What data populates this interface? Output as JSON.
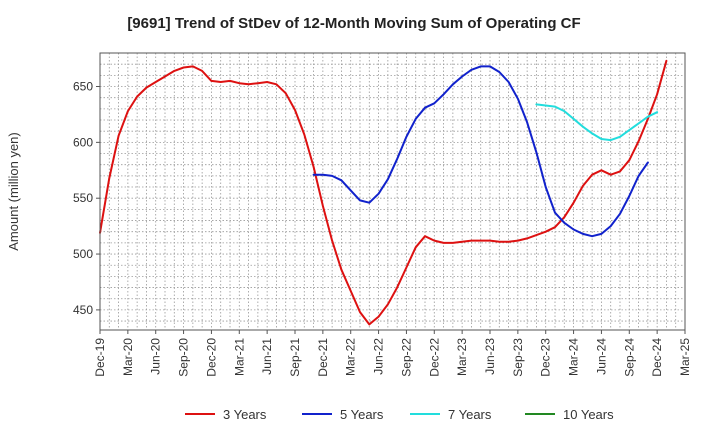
{
  "chart_data": {
    "type": "line",
    "title": "[9691]  Trend of StDev of 12-Month Moving Sum of Operating CF",
    "xlabel": "",
    "ylabel": "Amount (million yen)",
    "ylim": [
      432,
      680
    ],
    "yticks": [
      450,
      500,
      550,
      600,
      650
    ],
    "xticks": [
      "Dec-19",
      "Mar-20",
      "Jun-20",
      "Sep-20",
      "Dec-20",
      "Mar-21",
      "Jun-21",
      "Sep-21",
      "Dec-21",
      "Mar-22",
      "Jun-22",
      "Sep-22",
      "Dec-22",
      "Mar-23",
      "Jun-23",
      "Sep-23",
      "Dec-23",
      "Mar-24",
      "Jun-24",
      "Sep-24",
      "Dec-24",
      "Mar-25"
    ],
    "x_start": "Dec-19",
    "x_end": "Mar-25",
    "grid": true,
    "legend_position": "bottom",
    "series": [
      {
        "name": "3 Years",
        "color": "#dd1111",
        "start": "Dec-19",
        "values": [
          519,
          568,
          606,
          628,
          641,
          649,
          654,
          659,
          664,
          667,
          668,
          664,
          655,
          654,
          655,
          653,
          652,
          653,
          654,
          652,
          644,
          629,
          607,
          578,
          543,
          512,
          486,
          467,
          448,
          437,
          444,
          455,
          470,
          488,
          506,
          516,
          512,
          510,
          510,
          511,
          512,
          512,
          512,
          511,
          511,
          512,
          514,
          517,
          520,
          524,
          533,
          546,
          561,
          571,
          575,
          571,
          574,
          584,
          601,
          621,
          643,
          673
        ]
      },
      {
        "name": "5 Years",
        "color": "#1122cc",
        "start": "Nov-21",
        "values": [
          571,
          571,
          570,
          566,
          557,
          548,
          546,
          554,
          567,
          585,
          605,
          621,
          631,
          635,
          643,
          652,
          659,
          665,
          668,
          668,
          663,
          654,
          639,
          618,
          591,
          560,
          537,
          528,
          522,
          518,
          516,
          518,
          525,
          536,
          552,
          570,
          582
        ]
      },
      {
        "name": "7 Years",
        "color": "#22dddd",
        "start": "Nov-23",
        "values": [
          634,
          633,
          632,
          628,
          621,
          614,
          608,
          603,
          602,
          605,
          611,
          617,
          623,
          627
        ]
      },
      {
        "name": "10 Years",
        "color": "#228822",
        "start": "",
        "values": []
      }
    ]
  }
}
